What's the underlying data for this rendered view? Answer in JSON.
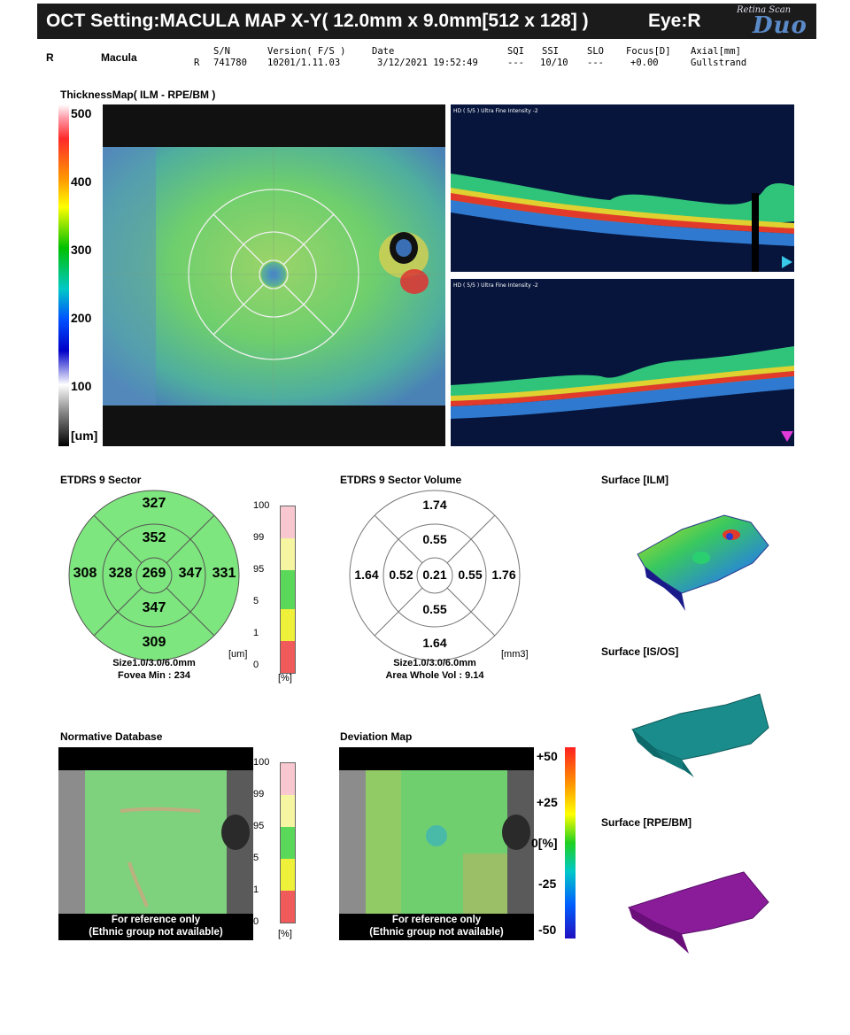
{
  "header": {
    "title": "OCT Setting:MACULA MAP X-Y( 12.0mm x 9.0mm[512 x 128] )",
    "eye": "Eye:R",
    "logo_top": "Retina Scan",
    "logo_main": "Duo"
  },
  "info": {
    "eye_side": "R",
    "scan_area": "Macula",
    "sn_label": "S/N",
    "sn_prefix": "R",
    "sn_value": "741780",
    "version_label": "Version( F/S )",
    "version_value": "10201/1.11.03",
    "date_label": "Date",
    "date_value": "3/12/2021 19:52:49",
    "sqi_label": "SQI",
    "sqi_value": "---",
    "ssi_label": "SSI",
    "ssi_value": "10/10",
    "slo_label": "SLO",
    "slo_value": "---",
    "focus_label": "Focus[D]",
    "focus_value": "+0.00",
    "axial_label": "Axial[mm]",
    "axial_value": "Gullstrand"
  },
  "thickness_map": {
    "title": "ThicknessMap( ILM - RPE/BM )",
    "scale": [
      "500",
      "400",
      "300",
      "200",
      "100"
    ],
    "unit": "[um]",
    "bscan_label_1": "HD ( 5/5 ) Ultra Fine  Intensity -2",
    "bscan_label_2": "HD ( 5/5 ) Ultra Fine  Intensity -2"
  },
  "etdrs_sector": {
    "title": "ETDRS 9 Sector",
    "center": "269",
    "inner_superior": "352",
    "inner_nasal": "347",
    "inner_inferior": "347",
    "inner_temporal": "328",
    "outer_superior": "327",
    "outer_nasal": "331",
    "outer_inferior": "309",
    "outer_temporal": "308",
    "size": "Size1.0/3.0/6.0mm",
    "fovea_min": "Fovea Min : 234",
    "unit": "[um]",
    "pct_scale": [
      "100",
      "99",
      "95",
      "5",
      "1",
      "0"
    ],
    "pct_unit": "[%]",
    "fill_color": "#7ee67e"
  },
  "etdrs_volume": {
    "title": "ETDRS 9 Sector Volume",
    "center": "0.21",
    "inner_superior": "0.55",
    "inner_nasal": "0.55",
    "inner_inferior": "0.55",
    "inner_temporal": "0.52",
    "outer_superior": "1.74",
    "outer_nasal": "1.76",
    "outer_inferior": "1.64",
    "outer_temporal": "1.64",
    "size": "Size1.0/3.0/6.0mm",
    "area_whole_vol": "Area Whole Vol : 9.14",
    "unit": "[mm3]"
  },
  "surfaces": {
    "ilm": "Surface [ILM]",
    "isos": "Surface [IS/OS]",
    "rpe": "Surface [RPE/BM]"
  },
  "normative": {
    "title": "Normative Database",
    "ref1": "For reference only",
    "ref2": "(Ethnic group not available)",
    "pct_scale": [
      "100",
      "99",
      "95",
      "5",
      "1",
      "0"
    ],
    "pct_unit": "[%]"
  },
  "deviation": {
    "title": "Deviation Map",
    "ref1": "For reference only",
    "ref2": "(Ethnic group not available)",
    "scale": [
      "+50",
      "+25",
      "0[%]",
      "-25",
      "-50"
    ]
  }
}
